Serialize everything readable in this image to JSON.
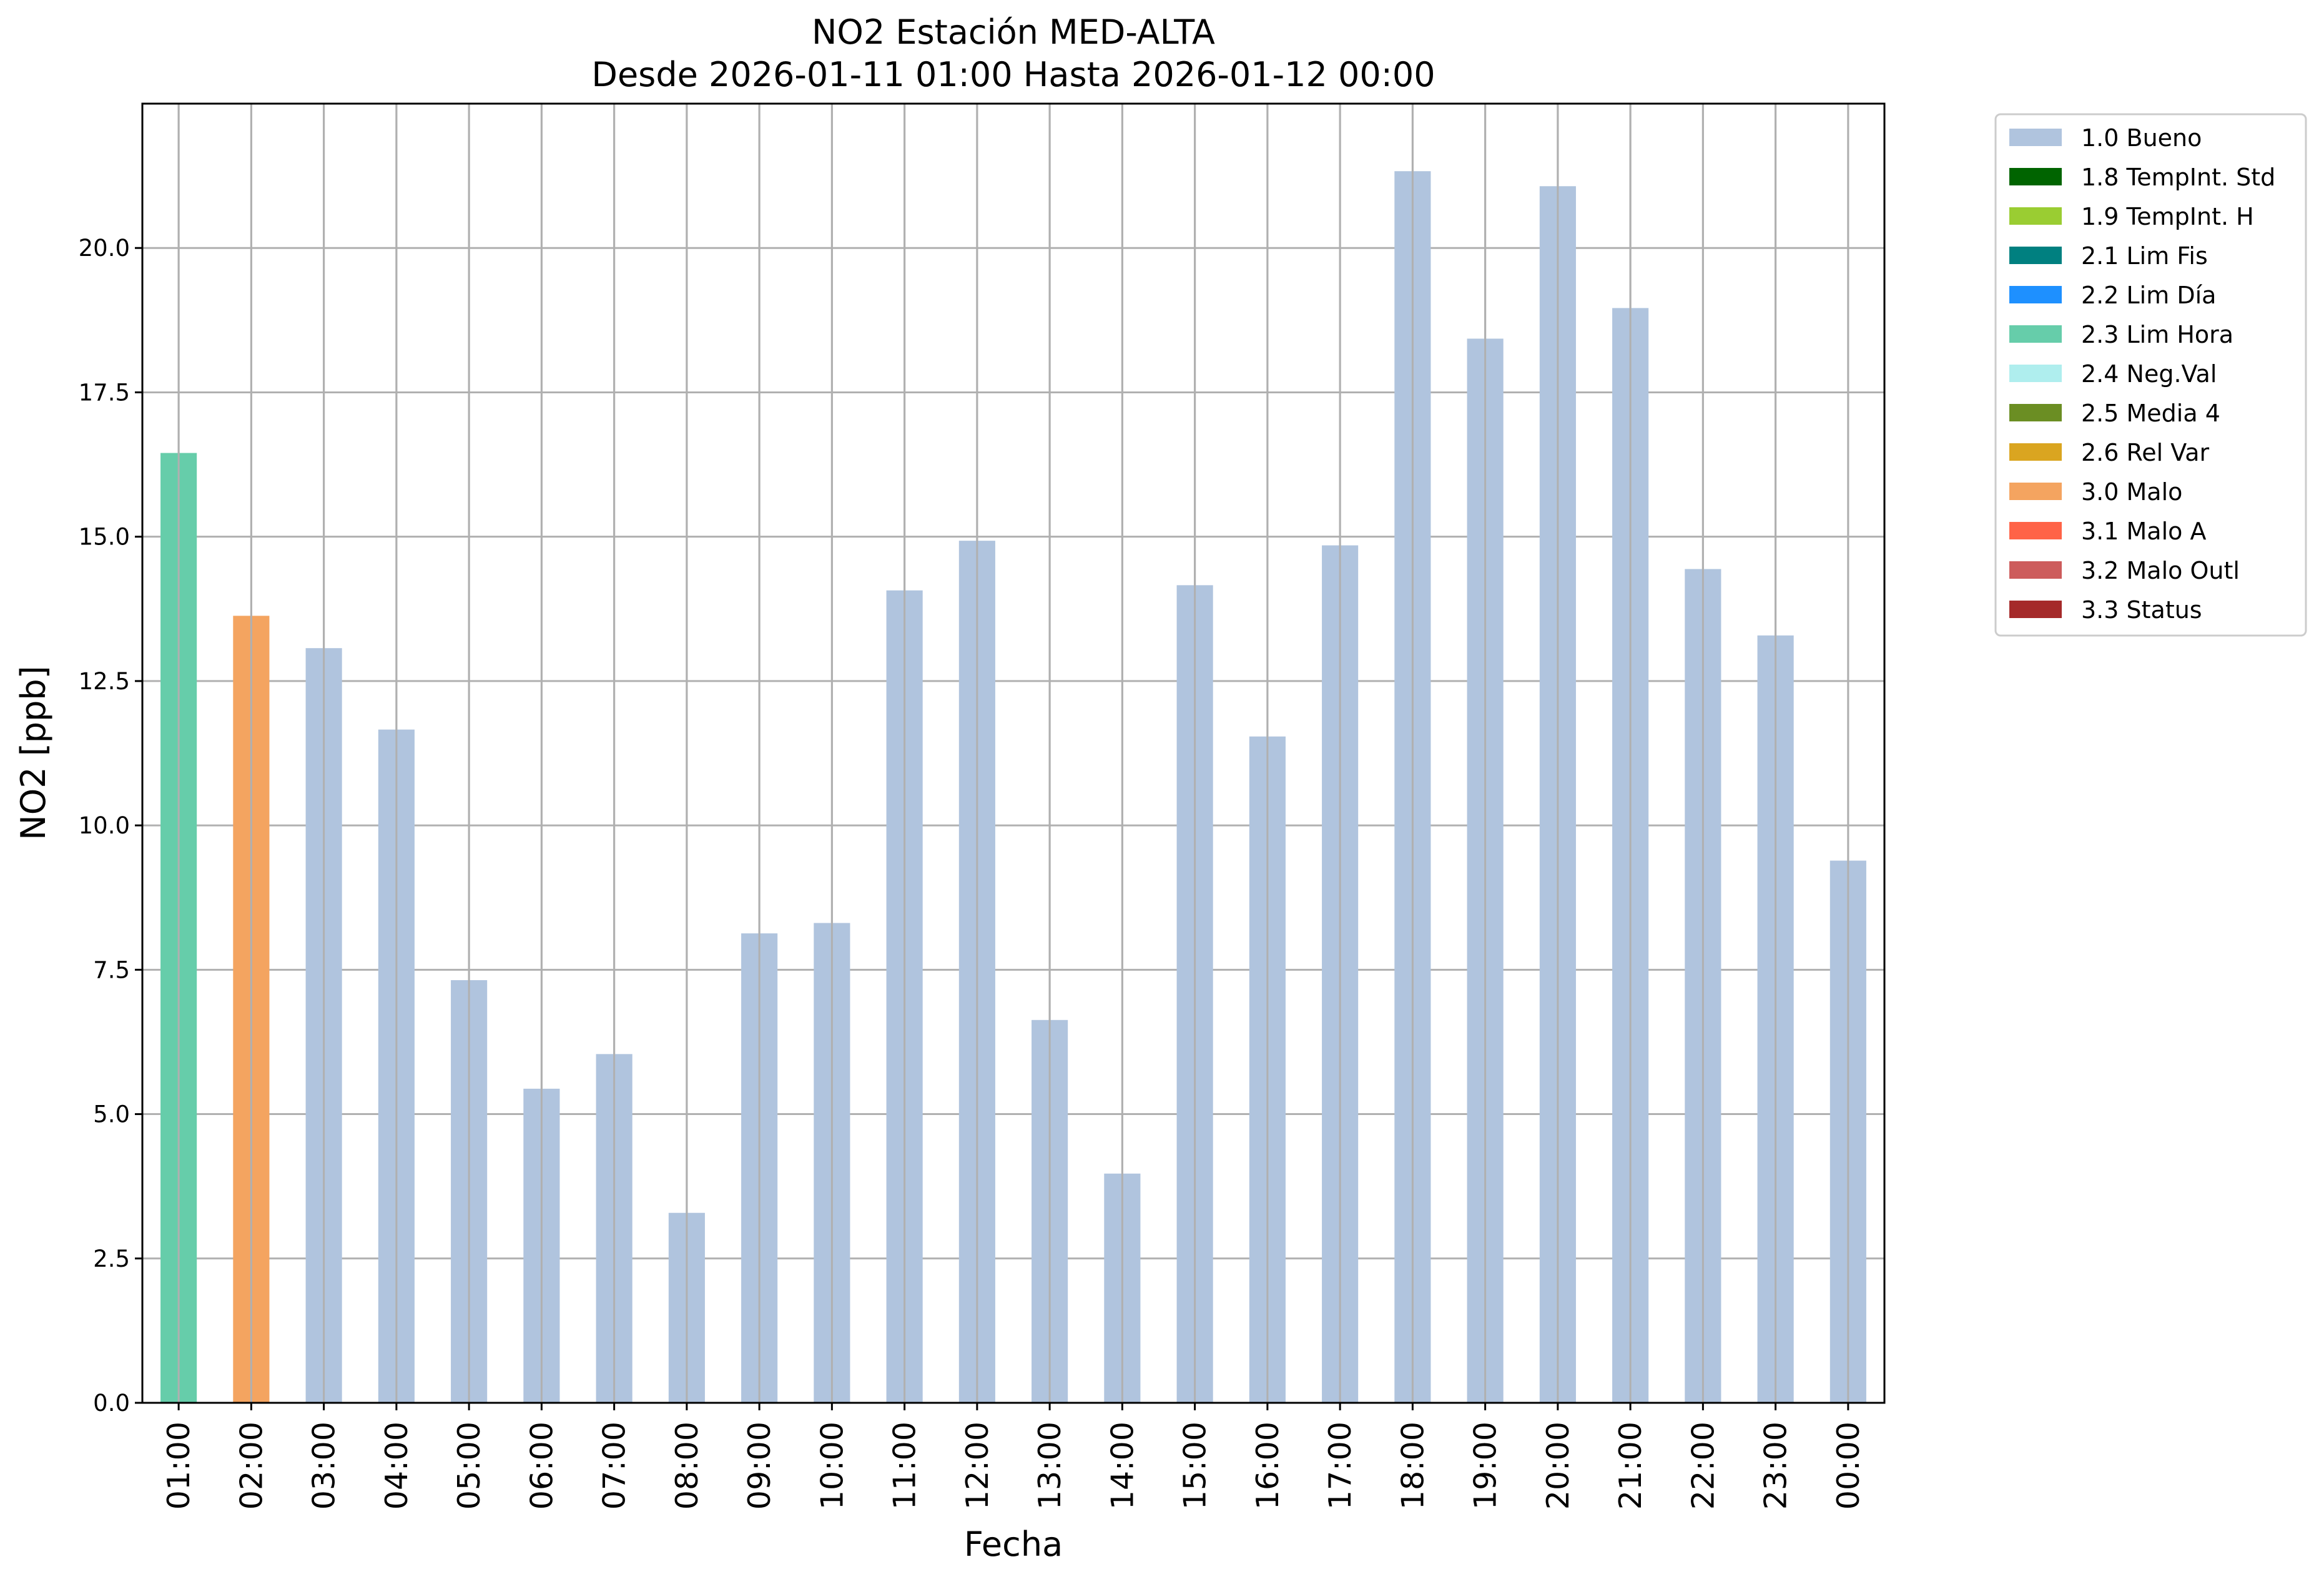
{
  "chart_data": {
    "type": "bar",
    "title": "NO2 Estación MED-ALTA",
    "subtitle": "Desde 2026-01-11 01:00 Hasta 2026-01-12 00:00",
    "xlabel": "Fecha",
    "ylabel": "NO2 [ppb]",
    "ylim": [
      0,
      22.5
    ],
    "yticks": [
      "0.0",
      "2.5",
      "5.0",
      "7.5",
      "10.0",
      "12.5",
      "15.0",
      "17.5",
      "20.0"
    ],
    "grid": true,
    "legend_position": "outside-top-right",
    "categories": [
      "01:00",
      "02:00",
      "03:00",
      "04:00",
      "05:00",
      "06:00",
      "07:00",
      "08:00",
      "09:00",
      "10:00",
      "11:00",
      "12:00",
      "13:00",
      "14:00",
      "15:00",
      "16:00",
      "17:00",
      "18:00",
      "19:00",
      "20:00",
      "21:00",
      "22:00",
      "23:00",
      "00:00"
    ],
    "values": [
      16.45,
      13.63,
      13.07,
      11.66,
      7.32,
      5.44,
      6.04,
      3.29,
      8.13,
      8.31,
      14.07,
      14.93,
      6.63,
      3.97,
      14.16,
      11.54,
      14.85,
      21.33,
      18.43,
      21.07,
      18.96,
      14.44,
      13.29,
      9.39
    ],
    "flags": [
      "2.3 Lim Hora",
      "3.0 Malo",
      "1.0 Bueno",
      "1.0 Bueno",
      "1.0 Bueno",
      "1.0 Bueno",
      "1.0 Bueno",
      "1.0 Bueno",
      "1.0 Bueno",
      "1.0 Bueno",
      "1.0 Bueno",
      "1.0 Bueno",
      "1.0 Bueno",
      "1.0 Bueno",
      "1.0 Bueno",
      "1.0 Bueno",
      "1.0 Bueno",
      "1.0 Bueno",
      "1.0 Bueno",
      "1.0 Bueno",
      "1.0 Bueno",
      "1.0 Bueno",
      "1.0 Bueno",
      "1.0 Bueno"
    ],
    "legend": [
      {
        "label": "1.0 Bueno",
        "color": "#b0c4de"
      },
      {
        "label": "1.8 TempInt. Std",
        "color": "#006400"
      },
      {
        "label": "1.9 TempInt. H",
        "color": "#9acd32"
      },
      {
        "label": "2.1 Lim Fis",
        "color": "#008080"
      },
      {
        "label": "2.2 Lim Día",
        "color": "#1e90ff"
      },
      {
        "label": "2.3 Lim Hora",
        "color": "#66cdaa"
      },
      {
        "label": "2.4 Neg.Val",
        "color": "#afeeee"
      },
      {
        "label": "2.5 Media 4",
        "color": "#6b8e23"
      },
      {
        "label": "2.6 Rel Var",
        "color": "#daa520"
      },
      {
        "label": "3.0 Malo",
        "color": "#f4a460"
      },
      {
        "label": "3.1 Malo A",
        "color": "#ff6347"
      },
      {
        "label": "3.2 Malo Outl",
        "color": "#cd5c5c"
      },
      {
        "label": "3.3 Status",
        "color": "#a52a2a"
      }
    ]
  }
}
